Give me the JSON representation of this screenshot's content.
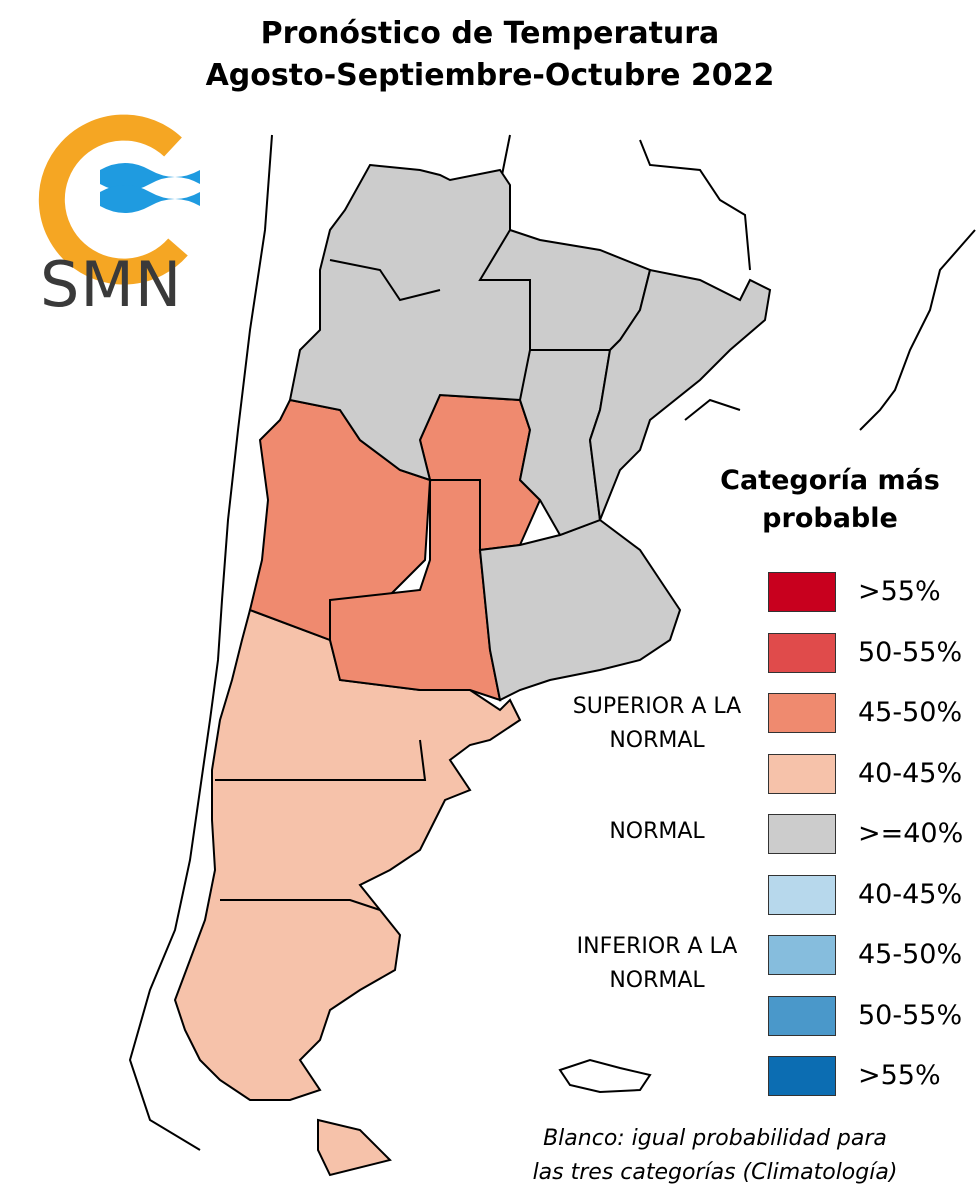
{
  "title": {
    "line1": "Pronóstico de Temperatura",
    "line2": "Agosto-Septiembre-Octubre 2022"
  },
  "logo": {
    "text": "SMN",
    "colors": {
      "ring": "#f5a623",
      "waves": "#1f9be0",
      "text": "#3a3a3a"
    }
  },
  "map": {
    "regions": [
      {
        "name": "north",
        "category": "normal",
        "color": "#cccccc"
      },
      {
        "name": "northeast",
        "category": "normal",
        "color": "#cccccc"
      },
      {
        "name": "buenos-aires-east",
        "category": "normal",
        "color": "#cccccc"
      },
      {
        "name": "cuyo",
        "category": "superior 45-50%",
        "color": "#ef8a6f"
      },
      {
        "name": "central",
        "category": "superior 45-50%",
        "color": "#ef8a6f"
      },
      {
        "name": "patagonia",
        "category": "superior 40-45%",
        "color": "#f6c2aa"
      }
    ],
    "colors": {
      "border": "#000000",
      "neighbor": "#ffffff"
    }
  },
  "legend": {
    "title": "Categoría más probable",
    "groups": {
      "superior": "SUPERIOR A LA NORMAL",
      "normal": "NORMAL",
      "inferior": "INFERIOR A LA NORMAL"
    },
    "items": [
      {
        "label": ">55%",
        "color": "#c8001e"
      },
      {
        "label": "50-55%",
        "color": "#e04b4b"
      },
      {
        "label": "45-50%",
        "color": "#ef8a6f"
      },
      {
        "label": "40-45%",
        "color": "#f6c2aa"
      },
      {
        "label": ">=40%",
        "color": "#cccccc"
      },
      {
        "label": "40-45%",
        "color": "#b7d8ec"
      },
      {
        "label": "45-50%",
        "color": "#86bddd"
      },
      {
        "label": "50-55%",
        "color": "#4a98ca"
      },
      {
        "label": ">55%",
        "color": "#0c6db2"
      }
    ]
  },
  "note": {
    "line1": "Blanco: igual probabilidad para",
    "line2": "las tres categorías (Climatología)"
  }
}
